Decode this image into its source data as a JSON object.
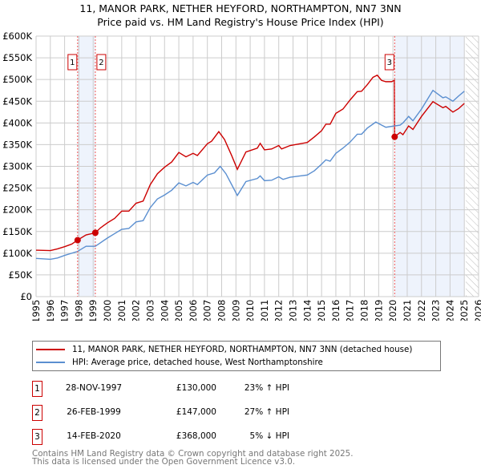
{
  "chart_data": {
    "type": "line",
    "title": "11, MANOR PARK, NETHER HEYFORD, NORTHAMPTON, NN7 3NN",
    "subtitle": "Price paid vs. HM Land Registry's House Price Index (HPI)",
    "xlim": [
      1995,
      2026
    ],
    "ylim": [
      0,
      600000
    ],
    "x_ticks": [
      "1995",
      "1996",
      "1997",
      "1998",
      "1999",
      "2000",
      "2001",
      "2002",
      "2003",
      "2004",
      "2005",
      "2006",
      "2007",
      "2008",
      "2009",
      "2010",
      "2011",
      "2012",
      "2013",
      "2014",
      "2015",
      "2016",
      "2017",
      "2018",
      "2019",
      "2020",
      "2021",
      "2022",
      "2023",
      "2024",
      "2025",
      "2026"
    ],
    "y_ticks": [
      "£0",
      "£50K",
      "£100K",
      "£150K",
      "£200K",
      "£250K",
      "£300K",
      "£350K",
      "£400K",
      "£450K",
      "£500K",
      "£550K",
      "£600K"
    ],
    "grid": true,
    "series": [
      {
        "name": "11, MANOR PARK, NETHER HEYFORD, NORTHAMPTON, NN7 3NN (detached house)",
        "color": "#cc0000",
        "points": [
          [
            1995,
            107
          ],
          [
            1996,
            106
          ],
          [
            1996.5,
            110
          ],
          [
            1997,
            115
          ],
          [
            1997.5,
            121
          ],
          [
            1997.9,
            130
          ],
          [
            1998.5,
            142
          ],
          [
            1999.15,
            147
          ],
          [
            1999.5,
            158
          ],
          [
            2000,
            170
          ],
          [
            2000.5,
            180
          ],
          [
            2001,
            197
          ],
          [
            2001.5,
            197
          ],
          [
            2002,
            215
          ],
          [
            2002.5,
            220
          ],
          [
            2003,
            258
          ],
          [
            2003.5,
            283
          ],
          [
            2004,
            298
          ],
          [
            2004.5,
            310
          ],
          [
            2005,
            332
          ],
          [
            2005.5,
            322
          ],
          [
            2006,
            330
          ],
          [
            2006.3,
            325
          ],
          [
            2007,
            352
          ],
          [
            2007.3,
            358
          ],
          [
            2007.8,
            380
          ],
          [
            2008.2,
            362
          ],
          [
            2008.7,
            325
          ],
          [
            2009.1,
            293
          ],
          [
            2009.7,
            333
          ],
          [
            2010.5,
            342
          ],
          [
            2010.7,
            353
          ],
          [
            2011,
            338
          ],
          [
            2011.5,
            340
          ],
          [
            2012,
            348
          ],
          [
            2012.2,
            340
          ],
          [
            2012.8,
            348
          ],
          [
            2013.5,
            352
          ],
          [
            2014,
            355
          ],
          [
            2014.5,
            368
          ],
          [
            2015,
            382
          ],
          [
            2015.3,
            397
          ],
          [
            2015.6,
            397
          ],
          [
            2016,
            422
          ],
          [
            2016.5,
            432
          ],
          [
            2017,
            453
          ],
          [
            2017.5,
            472
          ],
          [
            2017.8,
            473
          ],
          [
            2018.2,
            488
          ],
          [
            2018.6,
            505
          ],
          [
            2018.9,
            510
          ],
          [
            2019.2,
            498
          ],
          [
            2019.5,
            495
          ],
          [
            2019.9,
            495
          ],
          [
            2020.1,
            498
          ],
          [
            2020.12,
            368
          ],
          [
            2020.5,
            378
          ],
          [
            2020.7,
            373
          ],
          [
            2021.1,
            393
          ],
          [
            2021.4,
            385
          ],
          [
            2022,
            415
          ],
          [
            2022.8,
            449
          ],
          [
            2023.5,
            435
          ],
          [
            2023.7,
            438
          ],
          [
            2024.2,
            425
          ],
          [
            2024.6,
            433
          ],
          [
            2025,
            445
          ]
        ]
      },
      {
        "name": "HPI: Average price, detached house, West Northamptonshire",
        "color": "#5b8fd0",
        "points": [
          [
            1995,
            88
          ],
          [
            1996,
            86
          ],
          [
            1996.5,
            89
          ],
          [
            1997,
            95
          ],
          [
            1997.9,
            104
          ],
          [
            1998.5,
            116
          ],
          [
            1999.15,
            116
          ],
          [
            2000,
            135
          ],
          [
            2000.5,
            145
          ],
          [
            2001,
            155
          ],
          [
            2001.5,
            157
          ],
          [
            2002,
            172
          ],
          [
            2002.5,
            175
          ],
          [
            2003,
            205
          ],
          [
            2003.5,
            225
          ],
          [
            2004,
            234
          ],
          [
            2004.5,
            245
          ],
          [
            2005,
            262
          ],
          [
            2005.5,
            255
          ],
          [
            2006,
            263
          ],
          [
            2006.3,
            258
          ],
          [
            2007,
            280
          ],
          [
            2007.5,
            285
          ],
          [
            2007.9,
            300
          ],
          [
            2008.3,
            283
          ],
          [
            2008.7,
            258
          ],
          [
            2009.1,
            233
          ],
          [
            2009.7,
            265
          ],
          [
            2010.5,
            272
          ],
          [
            2010.7,
            278
          ],
          [
            2011,
            267
          ],
          [
            2011.5,
            268
          ],
          [
            2012,
            276
          ],
          [
            2012.3,
            270
          ],
          [
            2012.8,
            275
          ],
          [
            2013.5,
            278
          ],
          [
            2014,
            280
          ],
          [
            2014.5,
            290
          ],
          [
            2015,
            305
          ],
          [
            2015.3,
            315
          ],
          [
            2015.6,
            312
          ],
          [
            2016,
            330
          ],
          [
            2016.5,
            342
          ],
          [
            2017,
            356
          ],
          [
            2017.5,
            374
          ],
          [
            2017.8,
            374
          ],
          [
            2018.2,
            388
          ],
          [
            2018.8,
            402
          ],
          [
            2019.2,
            395
          ],
          [
            2019.5,
            390
          ],
          [
            2020.1,
            393
          ],
          [
            2020.5,
            395
          ],
          [
            2020.7,
            400
          ],
          [
            2021.1,
            415
          ],
          [
            2021.4,
            405
          ],
          [
            2022,
            432
          ],
          [
            2022.8,
            475
          ],
          [
            2023.5,
            458
          ],
          [
            2023.7,
            460
          ],
          [
            2024.2,
            450
          ],
          [
            2024.6,
            462
          ],
          [
            2025,
            473
          ]
        ]
      }
    ],
    "y_unit": "thousands GBP",
    "sales": [
      {
        "label": "1",
        "x": 1997.91,
        "value": 130
      },
      {
        "label": "2",
        "x": 1999.15,
        "value": 147
      },
      {
        "label": "3",
        "x": 2020.12,
        "value": 368
      }
    ],
    "shaded": [
      [
        1997.91,
        1999.15
      ],
      [
        2020.12,
        2025.0
      ]
    ],
    "hatched_from": 2025.1
  },
  "table": [
    {
      "num": "1",
      "date": "28-NOV-1997",
      "price": "£130,000",
      "hpi": "23% ↑ HPI"
    },
    {
      "num": "2",
      "date": "26-FEB-1999",
      "price": "£147,000",
      "hpi": "27% ↑ HPI"
    },
    {
      "num": "3",
      "date": "14-FEB-2020",
      "price": "£368,000",
      "hpi": "5% ↓ HPI"
    }
  ],
  "footer": {
    "line1": "Contains HM Land Registry data © Crown copyright and database right 2025.",
    "line2": "This data is licensed under the Open Government Licence v3.0."
  }
}
